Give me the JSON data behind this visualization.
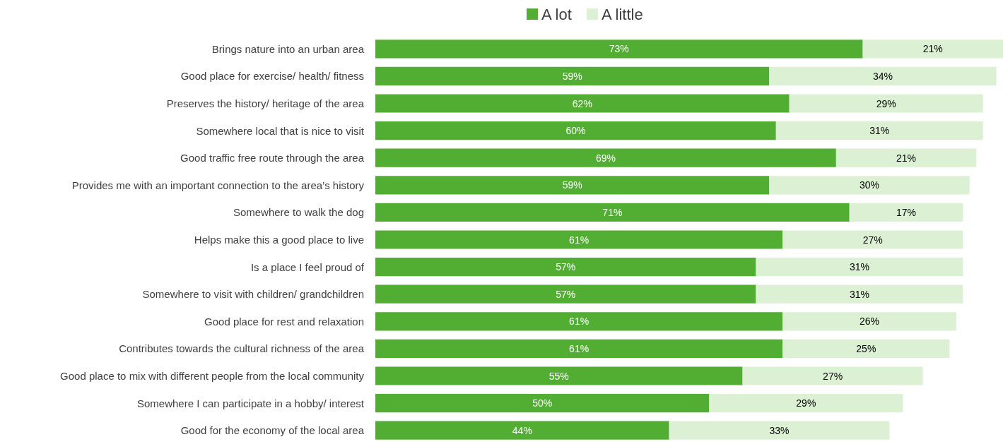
{
  "chart_data": {
    "type": "bar",
    "orientation": "horizontal",
    "stacked": true,
    "legend": "top",
    "categories": [
      "Brings nature into an urban area",
      "Good place for exercise/ health/ fitness",
      "Preserves the history/ heritage of the area",
      "Somewhere local that is nice to visit",
      "Good traffic free route through the area",
      "Provides me with an important connection to the area’s history",
      "Somewhere to walk the dog",
      "Helps make this a good place to live",
      "Is a place I feel proud of",
      "Somewhere to visit with children/ grandchildren",
      "Good place for rest and relaxation",
      "Contributes towards the cultural richness of the area",
      "Good place to mix with different people from the local community",
      "Somewhere I can participate in a hobby/ interest",
      "Good for the economy of the local area"
    ],
    "series": [
      {
        "name": "A lot",
        "color": "#52ae32",
        "values": [
          73,
          59,
          62,
          60,
          69,
          59,
          71,
          61,
          57,
          57,
          61,
          61,
          55,
          50,
          44
        ],
        "value_labels": [
          "73%",
          "59%",
          "62%",
          "60%",
          "69%",
          "59%",
          "71%",
          "61%",
          "57%",
          "57%",
          "61%",
          "61%",
          "55%",
          "50%",
          "44%"
        ]
      },
      {
        "name": "A little",
        "color": "#dcf1d4",
        "values": [
          21,
          34,
          29,
          31,
          21,
          30,
          17,
          27,
          31,
          31,
          26,
          25,
          27,
          29,
          33
        ],
        "value_labels": [
          "21%",
          "34%",
          "29%",
          "31%",
          "21%",
          "30%",
          "17%",
          "27%",
          "31%",
          "31%",
          "26%",
          "25%",
          "27%",
          "29%",
          "33%"
        ]
      }
    ]
  }
}
